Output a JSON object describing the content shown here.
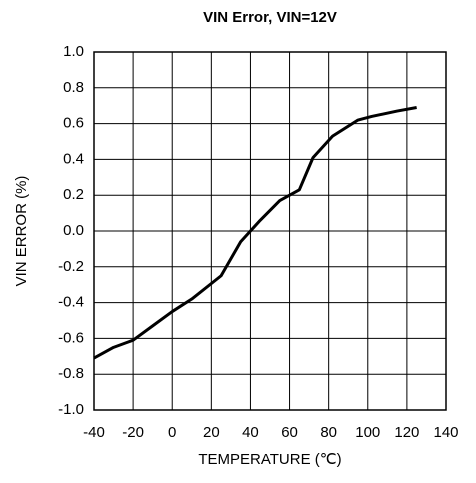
{
  "chart_data": {
    "type": "line",
    "title": "VIN Error, VIN=12V",
    "x_label": "TEMPERATURE (℃)",
    "y_label": "VIN ERROR (%)",
    "series": [
      {
        "name": "VIN=12V",
        "color": "#000000",
        "x": [
          -40,
          -30,
          -20,
          -10,
          0,
          10,
          25,
          35,
          45,
          55,
          65,
          72,
          82,
          95,
          102,
          115,
          125
        ],
        "values": [
          -0.71,
          -0.65,
          -0.61,
          -0.53,
          -0.45,
          -0.38,
          -0.25,
          -0.06,
          0.06,
          0.17,
          0.23,
          0.41,
          0.53,
          0.62,
          0.64,
          0.67,
          0.69
        ]
      }
    ],
    "xlim": [
      -40,
      140
    ],
    "xticks": [
      -40,
      -20,
      0,
      20,
      40,
      60,
      80,
      100,
      120,
      140
    ],
    "ylim": [
      -1,
      1
    ],
    "yticks": [
      {
        "value": -1,
        "label": "-1.0"
      },
      -0.8,
      -0.6,
      -0.4,
      -0.2,
      {
        "value": 0,
        "label": "0.0"
      },
      0.2,
      0.4,
      0.6,
      0.8,
      {
        "value": 1,
        "label": "1.0"
      }
    ],
    "grid": true
  }
}
